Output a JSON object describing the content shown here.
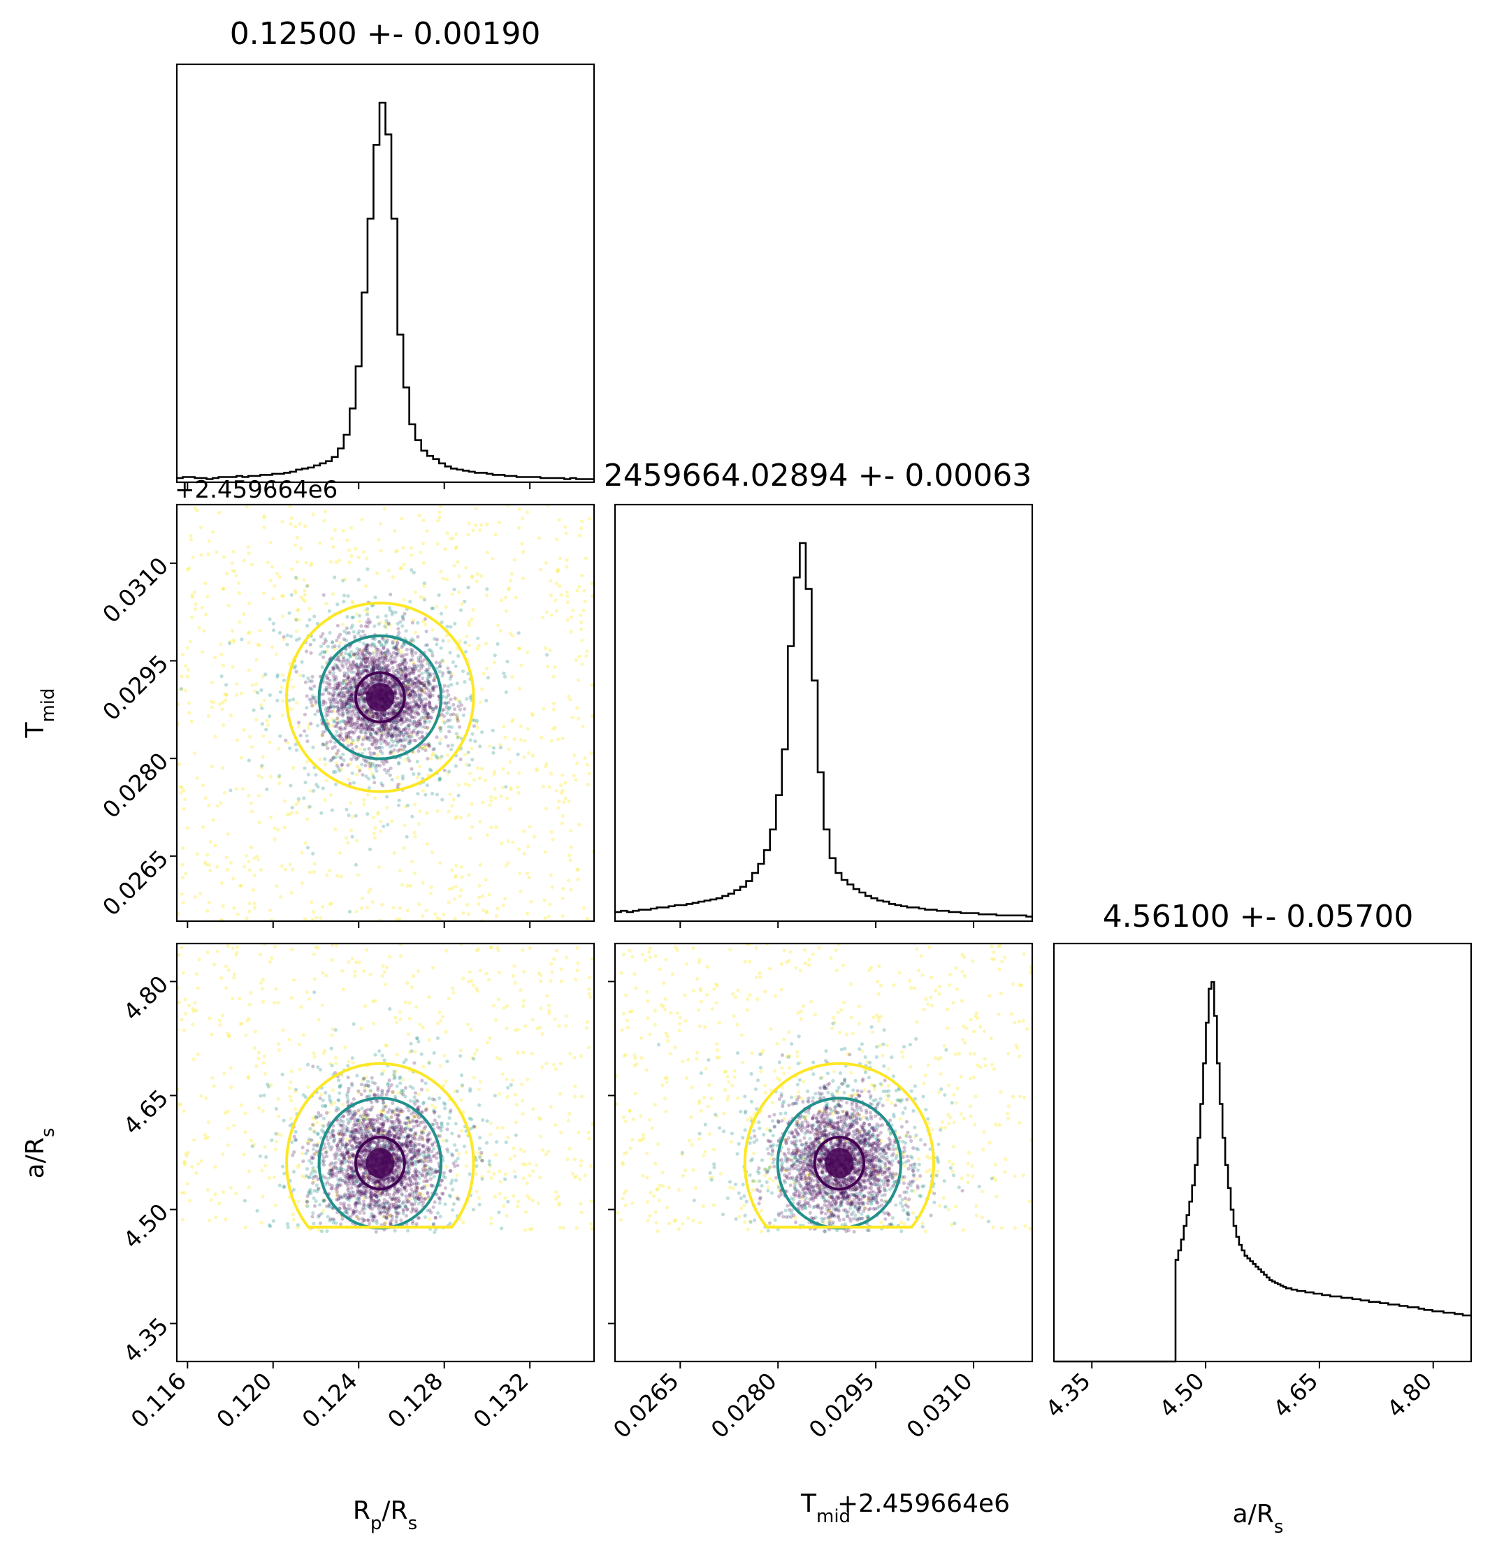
{
  "chart_data": {
    "type": "scatter",
    "kind": "corner-plot",
    "parameters": [
      {
        "key": "rp",
        "label_main": "R",
        "label_sub": "p",
        "label_rest": "/R",
        "label_sub2": "s"
      },
      {
        "key": "tmid",
        "label_main": "T",
        "label_sub": "mid",
        "label_rest": "",
        "label_sub2": ""
      },
      {
        "key": "ars",
        "label_main": "a/R",
        "label_sub": "s",
        "label_rest": "",
        "label_sub2": ""
      }
    ],
    "titles": [
      "0.12500 +- 0.00190",
      "2459664.02894 +- 0.00063",
      "4.56100 +- 0.05700"
    ],
    "offset_text": "+2.459664e6",
    "ranges": {
      "rp": [
        0.1155,
        0.135
      ],
      "tmid": [
        0.0255,
        0.0319
      ],
      "ars": [
        4.3,
        4.85
      ]
    },
    "ticks": {
      "rp": [
        "0.116",
        "0.120",
        "0.124",
        "0.128",
        "0.132"
      ],
      "tmid": [
        "0.0265",
        "0.0280",
        "0.0295",
        "0.0310"
      ],
      "ars": [
        "4.35",
        "4.50",
        "4.65",
        "4.80"
      ]
    },
    "centers": {
      "rp": 0.125,
      "tmid": 0.02894,
      "ars": 4.561
    },
    "lower_cutoff": {
      "ars": 4.47
    },
    "histograms": {
      "rp": {
        "range": [
          0.1155,
          0.135
        ],
        "counts": [
          4,
          5,
          5,
          4,
          4,
          3,
          4,
          5,
          5,
          5,
          6,
          5,
          6,
          6,
          7,
          7,
          8,
          8,
          9,
          10,
          12,
          13,
          14,
          16,
          18,
          20,
          24,
          32,
          45,
          70,
          110,
          180,
          250,
          320,
          360,
          330,
          250,
          140,
          90,
          55,
          40,
          30,
          25,
          22,
          18,
          15,
          13,
          12,
          11,
          10,
          9,
          9,
          8,
          7,
          7,
          6,
          6,
          5,
          5,
          5,
          5,
          4,
          4,
          4,
          4,
          3,
          4,
          3,
          3,
          3
        ]
      },
      "tmid": {
        "range": [
          0.0255,
          0.0319
        ],
        "counts": [
          8,
          9,
          8,
          9,
          10,
          10,
          11,
          12,
          12,
          13,
          14,
          14,
          15,
          16,
          17,
          18,
          19,
          20,
          22,
          24,
          27,
          30,
          35,
          42,
          50,
          62,
          80,
          110,
          150,
          240,
          300,
          330,
          290,
          210,
          130,
          80,
          55,
          42,
          36,
          32,
          28,
          25,
          22,
          20,
          18,
          17,
          15,
          14,
          13,
          12,
          12,
          11,
          10,
          10,
          9,
          9,
          8,
          8,
          7,
          7,
          7,
          6,
          6,
          6,
          5,
          5,
          5,
          5,
          5,
          4
        ]
      },
      "ars": {
        "range": [
          4.3,
          4.85
        ],
        "counts": [
          0,
          0,
          0,
          0,
          0,
          0,
          0,
          0,
          0,
          0,
          0,
          0,
          0,
          0,
          0,
          0,
          0,
          0,
          0,
          0,
          0,
          0,
          0,
          0,
          0,
          0,
          0,
          0,
          0,
          0,
          0,
          0,
          0,
          0,
          0,
          0,
          0,
          0,
          0,
          0,
          0,
          0,
          0,
          0,
          75,
          82,
          90,
          100,
          108,
          118,
          130,
          145,
          165,
          190,
          220,
          250,
          275,
          280,
          255,
          220,
          190,
          165,
          145,
          128,
          112,
          100,
          92,
          86,
          82,
          78,
          76,
          74,
          72,
          70,
          68,
          66,
          64,
          62,
          60,
          59,
          58,
          57,
          56,
          55,
          54,
          54,
          53,
          53,
          52,
          52,
          52,
          51,
          51,
          51,
          50,
          50,
          50,
          49,
          49,
          49,
          48,
          48,
          48,
          48,
          47,
          47,
          47,
          47,
          46,
          46,
          46,
          45,
          45,
          45,
          44,
          44,
          44,
          44,
          43,
          43,
          43,
          42,
          42,
          42,
          42,
          41,
          41,
          41,
          40,
          40,
          40,
          40,
          39,
          39,
          38,
          38,
          38,
          37,
          37,
          37,
          37,
          36,
          36,
          36,
          36,
          35,
          35,
          35,
          34,
          34,
          34
        ]
      }
    },
    "scatter_pairs": [
      {
        "x": "rp",
        "y": "tmid",
        "spread_x": 0.0019,
        "spread_y": 0.00063
      },
      {
        "x": "rp",
        "y": "ars",
        "spread_x": 0.0019,
        "spread_y": 0.057
      },
      {
        "x": "tmid",
        "y": "ars",
        "spread_x": 0.00063,
        "spread_y": 0.057
      }
    ],
    "contour_colors": [
      "#440154",
      "#21918c",
      "#fde725"
    ],
    "hist_color": "#000000",
    "grid": false,
    "legend": "none"
  }
}
